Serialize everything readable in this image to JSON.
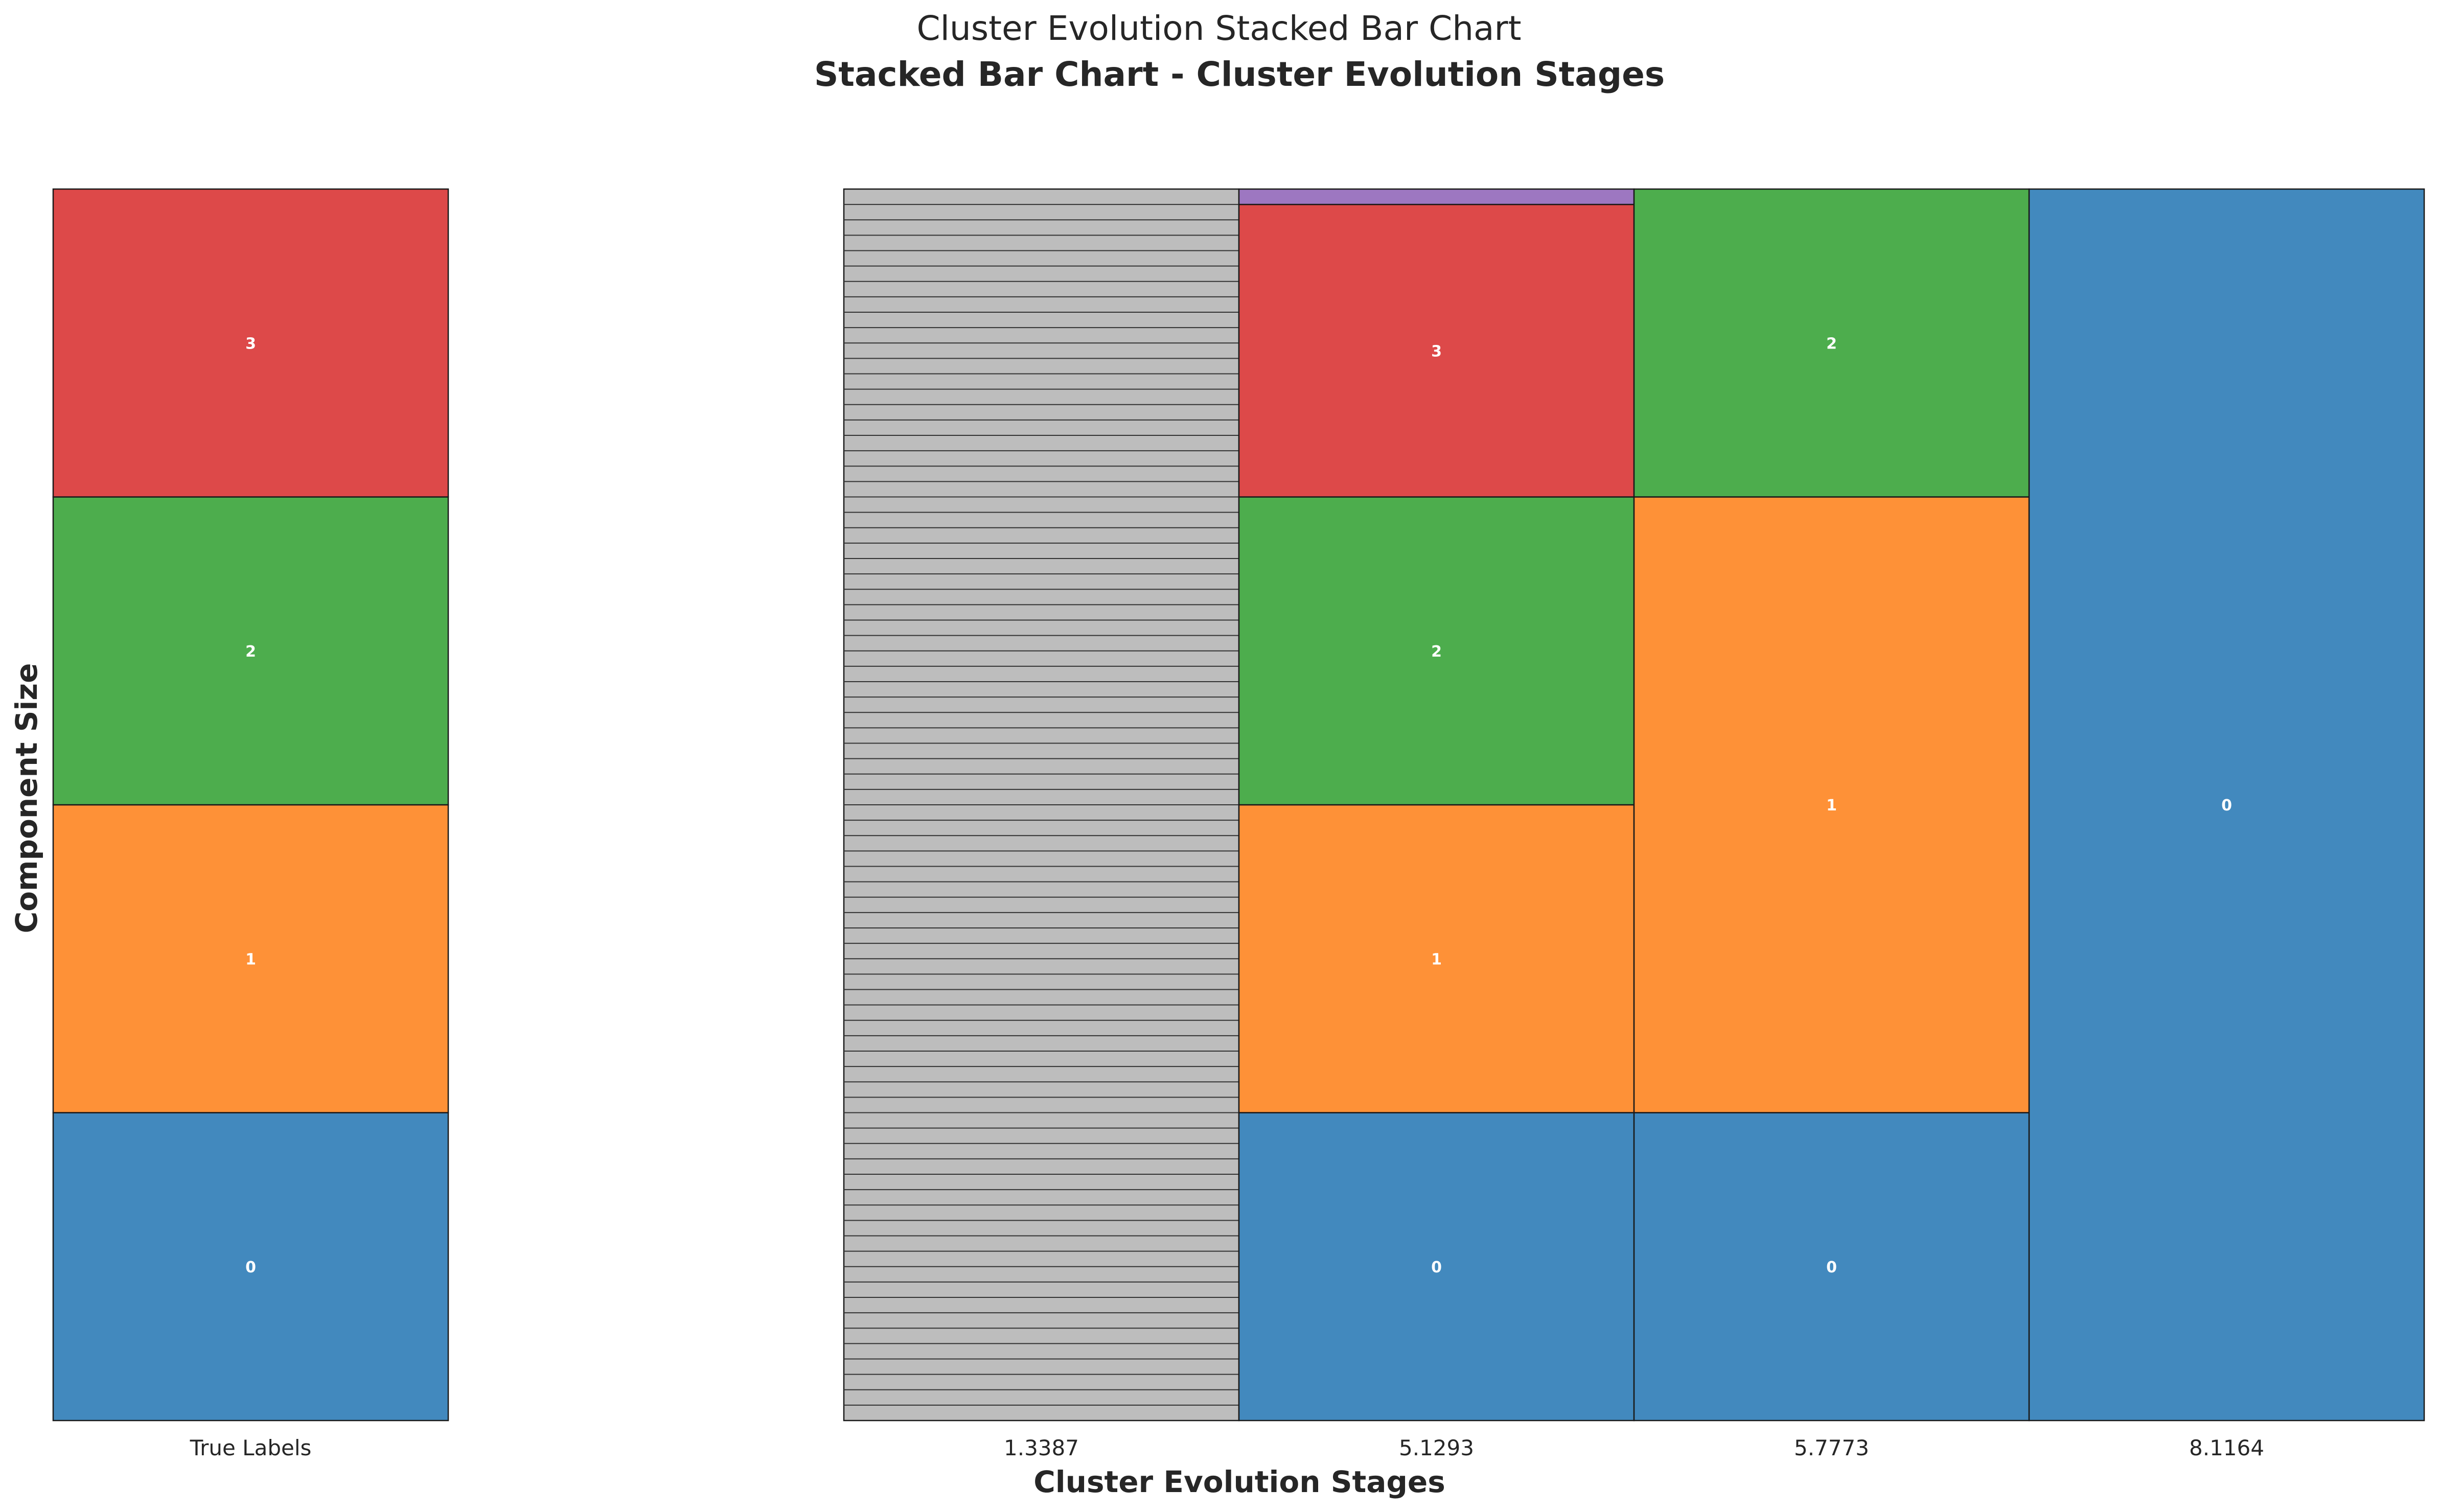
{
  "chart_data": {
    "type": "bar",
    "suptitle": "Cluster Evolution Stacked Bar Chart",
    "title": "Stacked Bar Chart - Cluster Evolution Stages",
    "xlabel": "Cluster Evolution Stages",
    "ylabel": "Component Size",
    "grid": false,
    "stacked": true,
    "colors": {
      "0": "#4289be",
      "1": "#fe9137",
      "2": "#4dad4d",
      "3": "#dd4949",
      "4": "#9d77c1",
      "noise": "#bdbdbd",
      "edge": "#1a1a1a"
    },
    "categories": [
      "True Labels",
      "1.3387",
      "5.1293",
      "5.7773",
      "8.1164"
    ],
    "bars": [
      {
        "category": "True Labels",
        "segments": [
          {
            "label": "0",
            "value": 100,
            "color_key": "0"
          },
          {
            "label": "1",
            "value": 100,
            "color_key": "1"
          },
          {
            "label": "2",
            "value": 100,
            "color_key": "2"
          },
          {
            "label": "3",
            "value": 100,
            "color_key": "3"
          }
        ]
      },
      {
        "category": "1.3387",
        "segments": [
          {
            "label": "",
            "value": 400,
            "color_key": "noise",
            "hatched": true,
            "n_stripes": 80
          }
        ]
      },
      {
        "category": "5.1293",
        "segments": [
          {
            "label": "0",
            "value": 100,
            "color_key": "0"
          },
          {
            "label": "1",
            "value": 100,
            "color_key": "1"
          },
          {
            "label": "2",
            "value": 100,
            "color_key": "2"
          },
          {
            "label": "3",
            "value": 95,
            "color_key": "3"
          },
          {
            "label": "",
            "value": 5,
            "color_key": "4"
          }
        ]
      },
      {
        "category": "5.7773",
        "segments": [
          {
            "label": "0",
            "value": 100,
            "color_key": "0"
          },
          {
            "label": "1",
            "value": 200,
            "color_key": "1"
          },
          {
            "label": "2",
            "value": 100,
            "color_key": "2"
          }
        ]
      },
      {
        "category": "8.1164",
        "segments": [
          {
            "label": "0",
            "value": 400,
            "color_key": "0"
          }
        ]
      }
    ],
    "ylim": [
      0,
      400
    ]
  }
}
